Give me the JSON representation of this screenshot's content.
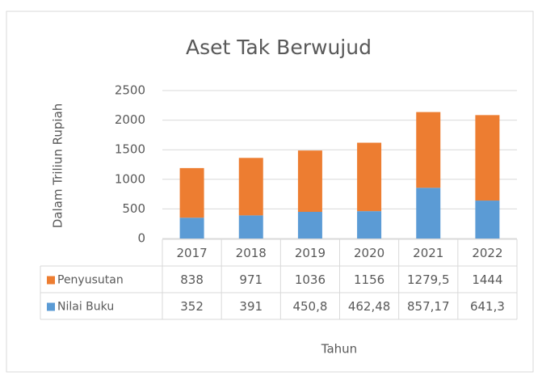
{
  "chart_data": {
    "type": "bar",
    "stacked": true,
    "title": "Aset Tak Berwujud",
    "x_label": "Tahun",
    "y_label": "Dalam Triliun Rupiah",
    "categories": [
      "2017",
      "2018",
      "2019",
      "2020",
      "2021",
      "2022"
    ],
    "series": [
      {
        "name": "Penyusutan",
        "color": "#ed7d31",
        "values": [
          838,
          971,
          1036,
          1156,
          1279.5,
          1444
        ],
        "value_labels": [
          "838",
          "971",
          "1036",
          "1156",
          "1279,5",
          "1444"
        ]
      },
      {
        "name": "Nilai Buku",
        "color": "#5b9bd5",
        "values": [
          352,
          391,
          450.8,
          462.48,
          857.17,
          641.3
        ],
        "value_labels": [
          "352",
          "391",
          "450,8",
          "462,48",
          "857,17",
          "641,3"
        ]
      }
    ],
    "ylim": [
      0,
      2500
    ],
    "yticks": [
      0,
      500,
      1000,
      1500,
      2000,
      2500
    ],
    "grid": true
  }
}
